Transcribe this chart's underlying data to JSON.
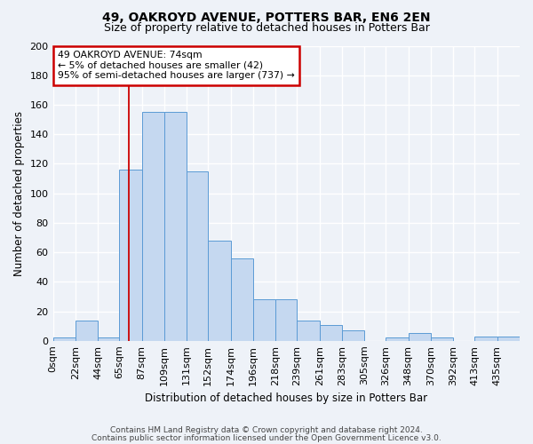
{
  "title": "49, OAKROYD AVENUE, POTTERS BAR, EN6 2EN",
  "subtitle": "Size of property relative to detached houses in Potters Bar",
  "xlabel": "Distribution of detached houses by size in Potters Bar",
  "ylabel": "Number of detached properties",
  "bin_labels": [
    "0sqm",
    "22sqm",
    "44sqm",
    "65sqm",
    "87sqm",
    "109sqm",
    "131sqm",
    "152sqm",
    "174sqm",
    "196sqm",
    "218sqm",
    "239sqm",
    "261sqm",
    "283sqm",
    "305sqm",
    "326sqm",
    "348sqm",
    "370sqm",
    "392sqm",
    "413sqm",
    "435sqm"
  ],
  "bar_heights": [
    2,
    14,
    2,
    116,
    155,
    155,
    115,
    68,
    56,
    28,
    28,
    14,
    11,
    7,
    0,
    2,
    5,
    2,
    0,
    3,
    3
  ],
  "bar_color": "#c5d8f0",
  "bar_edge_color": "#5b9bd5",
  "vline_x": 74,
  "vline_color": "#cc0000",
  "annotation_title": "49 OAKROYD AVENUE: 74sqm",
  "annotation_line1": "← 5% of detached houses are smaller (42)",
  "annotation_line2": "95% of semi-detached houses are larger (737) →",
  "annotation_box_color": "#ffffff",
  "annotation_box_edge": "#cc0000",
  "ylim": [
    0,
    200
  ],
  "yticks": [
    0,
    20,
    40,
    60,
    80,
    100,
    120,
    140,
    160,
    180,
    200
  ],
  "footer1": "Contains HM Land Registry data © Crown copyright and database right 2024.",
  "footer2": "Contains public sector information licensed under the Open Government Licence v3.0.",
  "bg_color": "#eef2f8",
  "grid_color": "#ffffff",
  "title_fontsize": 10,
  "subtitle_fontsize": 9,
  "bin_edges": [
    0,
    22,
    44,
    65,
    87,
    109,
    131,
    152,
    174,
    196,
    218,
    239,
    261,
    283,
    305,
    326,
    348,
    370,
    392,
    413,
    435,
    457
  ]
}
